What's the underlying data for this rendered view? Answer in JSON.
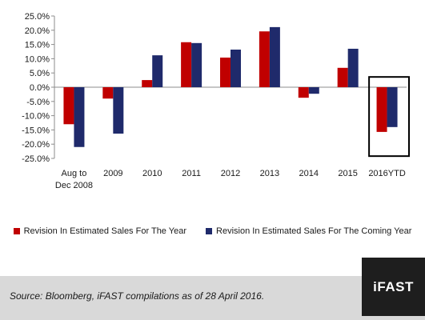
{
  "chart_data": {
    "type": "bar",
    "categories": [
      "Aug to\nDec 2008",
      "2009",
      "2010",
      "2011",
      "2012",
      "2013",
      "2014",
      "2015",
      "2016YTD"
    ],
    "series": [
      {
        "name": "Revision In Estimated Sales For The Year",
        "color": "#c00000",
        "values": [
          -13.0,
          -4.0,
          2.5,
          15.8,
          10.4,
          19.6,
          -3.7,
          6.8,
          -15.7
        ]
      },
      {
        "name": "Revision In Estimated Sales For The Coming Year",
        "color": "#1f2a6b",
        "values": [
          -21.0,
          -16.3,
          11.2,
          15.5,
          13.2,
          21.1,
          -2.3,
          13.5,
          -14.0
        ]
      }
    ],
    "ylim": [
      -25,
      25
    ],
    "yticks": [
      "25.0%",
      "20.0%",
      "15.0%",
      "10.0%",
      "5.0%",
      "0.0%",
      "-5.0%",
      "-10.0%",
      "-15.0%",
      "-20.0%",
      "-25.0%"
    ],
    "ytick_values": [
      25,
      20,
      15,
      10,
      5,
      0,
      -5,
      -10,
      -15,
      -20,
      -25
    ],
    "highlight_category": "2016YTD",
    "grid": false,
    "legend": "bottom"
  },
  "footer": {
    "source": "Source: Bloomberg, iFAST compilations as of 28 April 2016."
  },
  "logo": {
    "text": "iFAST"
  }
}
